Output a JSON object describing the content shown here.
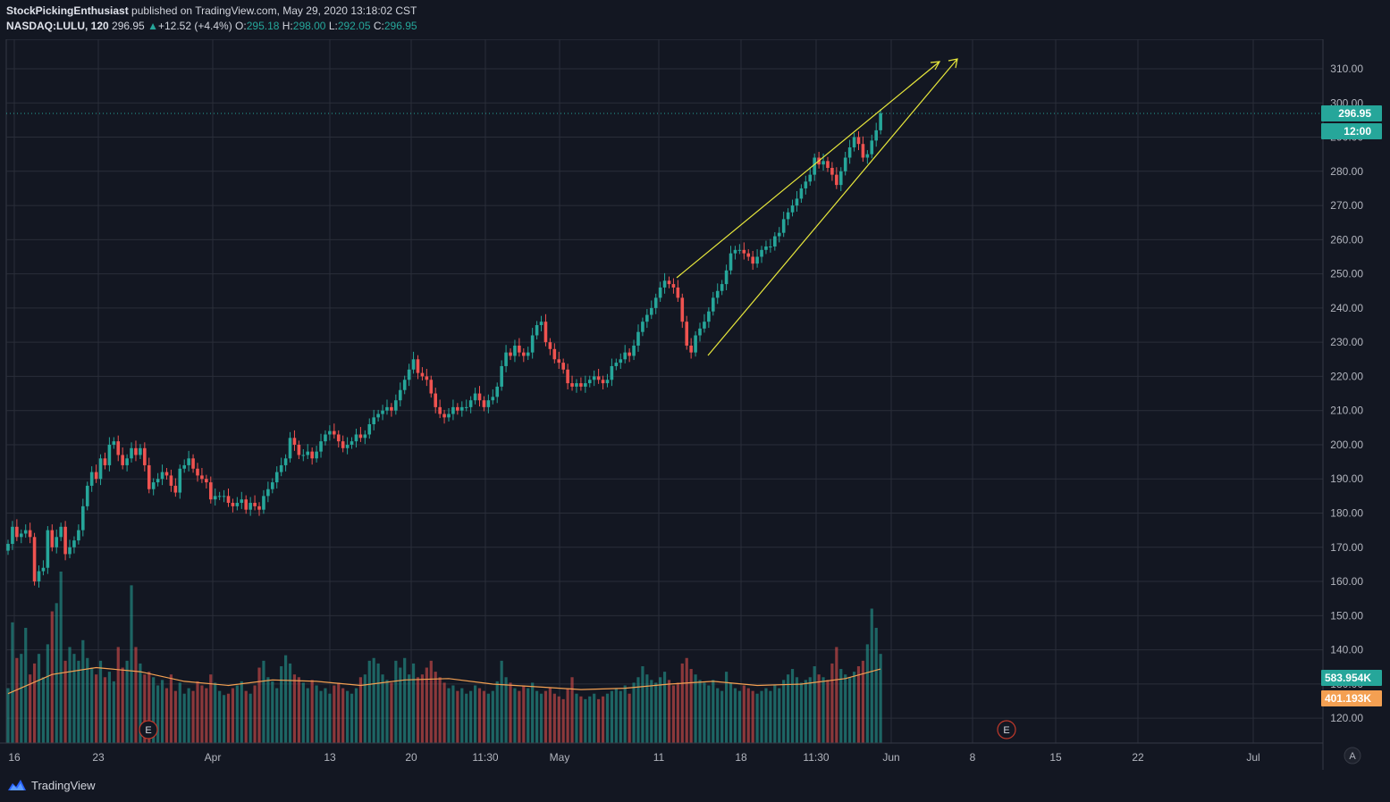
{
  "header": {
    "author": "StockPickingEnthusiast",
    "published_text": "published on TradingView.com, May 29, 2020 13:18:02 CST",
    "symbol": "NASDAQ:LULU, 120",
    "last": "296.95",
    "change_arrow": "▲",
    "change": "+12.52 (+4.4%)",
    "o_label": "O:",
    "o": "295.18",
    "h_label": "H:",
    "h": "298.00",
    "l_label": "L:",
    "l": "292.05",
    "c_label": "C:",
    "c": "296.95"
  },
  "footer": {
    "brand": "TradingView",
    "auto_label": "A"
  },
  "colors": {
    "background": "#131722",
    "grid": "#2a2e39",
    "up": "#26a69a",
    "down": "#ef5350",
    "drawing": "#e8e83c",
    "ma": "#f4a052",
    "earnings": "#c0392b"
  },
  "chart_data": {
    "type": "candlestick",
    "symbol": "NASDAQ:LULU",
    "interval": "120",
    "price_axis_ticks": [
      "120.00",
      "130.00",
      "140.00",
      "150.00",
      "160.00",
      "170.00",
      "180.00",
      "190.00",
      "200.00",
      "210.00",
      "220.00",
      "230.00",
      "240.00",
      "250.00",
      "260.00",
      "270.00",
      "280.00",
      "290.00",
      "300.00",
      "310.00"
    ],
    "time_axis_ticks": [
      "16",
      "23",
      "Apr",
      "13",
      "20",
      "11:30",
      "May",
      "11",
      "18",
      "11:30",
      "Jun",
      "8",
      "15",
      "22",
      "Jul"
    ],
    "last_price_label": "296.95",
    "countdown_label": "12:00",
    "volume_label": "583.954K",
    "volume_ma_label": "401.193K",
    "earnings_marker": "E",
    "path": [
      [
        0,
        171
      ],
      [
        1,
        176
      ],
      [
        2,
        173
      ],
      [
        3,
        174
      ],
      [
        4,
        175
      ],
      [
        5,
        173
      ],
      [
        6,
        160
      ],
      [
        7,
        163
      ],
      [
        8,
        164
      ],
      [
        9,
        175
      ],
      [
        10,
        170
      ],
      [
        11,
        173
      ],
      [
        12,
        176
      ],
      [
        13,
        168
      ],
      [
        14,
        170
      ],
      [
        15,
        172
      ],
      [
        16,
        175
      ],
      [
        17,
        182
      ],
      [
        18,
        188
      ],
      [
        19,
        192
      ],
      [
        20,
        190
      ],
      [
        21,
        196
      ],
      [
        22,
        194
      ],
      [
        23,
        200
      ],
      [
        24,
        201
      ],
      [
        25,
        197
      ],
      [
        26,
        194
      ],
      [
        27,
        196
      ],
      [
        28,
        199
      ],
      [
        29,
        197
      ],
      [
        30,
        199
      ],
      [
        31,
        194
      ],
      [
        32,
        187
      ],
      [
        33,
        189
      ],
      [
        34,
        190
      ],
      [
        35,
        192
      ],
      [
        36,
        191
      ],
      [
        37,
        188
      ],
      [
        38,
        186
      ],
      [
        39,
        193
      ],
      [
        40,
        194
      ],
      [
        41,
        196
      ],
      [
        42,
        193
      ],
      [
        43,
        191
      ],
      [
        44,
        190
      ],
      [
        45,
        189
      ],
      [
        46,
        184
      ],
      [
        47,
        185
      ],
      [
        48,
        185
      ],
      [
        49,
        185
      ],
      [
        50,
        183
      ],
      [
        51,
        182
      ],
      [
        52,
        183
      ],
      [
        53,
        184
      ],
      [
        54,
        181
      ],
      [
        55,
        183
      ],
      [
        56,
        182
      ],
      [
        57,
        181
      ],
      [
        58,
        185
      ],
      [
        59,
        187
      ],
      [
        60,
        189
      ],
      [
        61,
        192
      ],
      [
        62,
        194
      ],
      [
        63,
        196
      ],
      [
        64,
        202
      ],
      [
        65,
        200
      ],
      [
        66,
        197
      ],
      [
        67,
        197
      ],
      [
        68,
        198
      ],
      [
        69,
        196
      ],
      [
        70,
        198
      ],
      [
        71,
        201
      ],
      [
        72,
        203
      ],
      [
        73,
        204
      ],
      [
        74,
        203
      ],
      [
        75,
        201
      ],
      [
        76,
        199
      ],
      [
        77,
        200
      ],
      [
        78,
        201
      ],
      [
        79,
        203
      ],
      [
        80,
        202
      ],
      [
        81,
        203
      ],
      [
        82,
        206
      ],
      [
        83,
        208
      ],
      [
        84,
        209
      ],
      [
        85,
        210
      ],
      [
        86,
        211
      ],
      [
        87,
        210
      ],
      [
        88,
        213
      ],
      [
        89,
        216
      ],
      [
        90,
        219
      ],
      [
        91,
        222
      ],
      [
        92,
        225
      ],
      [
        93,
        221
      ],
      [
        94,
        220
      ],
      [
        95,
        219
      ],
      [
        96,
        215
      ],
      [
        97,
        211
      ],
      [
        98,
        209
      ],
      [
        99,
        208
      ],
      [
        100,
        209
      ],
      [
        101,
        211
      ],
      [
        102,
        210
      ],
      [
        103,
        211
      ],
      [
        104,
        211
      ],
      [
        105,
        213
      ],
      [
        106,
        215
      ],
      [
        107,
        213
      ],
      [
        108,
        211
      ],
      [
        109,
        213
      ],
      [
        110,
        214
      ],
      [
        111,
        217
      ],
      [
        112,
        223
      ],
      [
        113,
        227
      ],
      [
        114,
        226
      ],
      [
        115,
        229
      ],
      [
        116,
        227
      ],
      [
        117,
        226
      ],
      [
        118,
        227
      ],
      [
        119,
        232
      ],
      [
        120,
        235
      ],
      [
        121,
        236
      ],
      [
        122,
        230
      ],
      [
        123,
        228
      ],
      [
        124,
        225
      ],
      [
        125,
        224
      ],
      [
        126,
        222
      ],
      [
        127,
        218
      ],
      [
        128,
        217
      ],
      [
        129,
        218
      ],
      [
        130,
        217
      ],
      [
        131,
        218
      ],
      [
        132,
        219
      ],
      [
        133,
        220
      ],
      [
        134,
        219
      ],
      [
        135,
        218
      ],
      [
        136,
        219
      ],
      [
        137,
        223
      ],
      [
        138,
        224
      ],
      [
        139,
        225
      ],
      [
        140,
        227
      ],
      [
        141,
        226
      ],
      [
        142,
        229
      ],
      [
        143,
        233
      ],
      [
        144,
        236
      ],
      [
        145,
        238
      ],
      [
        146,
        240
      ],
      [
        147,
        243
      ],
      [
        148,
        246
      ],
      [
        149,
        248
      ],
      [
        150,
        247
      ],
      [
        151,
        246
      ],
      [
        152,
        243
      ],
      [
        153,
        236
      ],
      [
        154,
        229
      ],
      [
        155,
        227
      ],
      [
        156,
        232
      ],
      [
        157,
        234
      ],
      [
        158,
        236
      ],
      [
        159,
        239
      ],
      [
        160,
        243
      ],
      [
        161,
        245
      ],
      [
        162,
        247
      ],
      [
        163,
        251
      ],
      [
        164,
        256
      ],
      [
        165,
        257
      ],
      [
        166,
        257
      ],
      [
        167,
        256
      ],
      [
        168,
        255
      ],
      [
        169,
        253
      ],
      [
        170,
        255
      ],
      [
        171,
        257
      ],
      [
        172,
        258
      ],
      [
        173,
        258
      ],
      [
        174,
        261
      ],
      [
        175,
        262
      ],
      [
        176,
        266
      ],
      [
        177,
        268
      ],
      [
        178,
        270
      ],
      [
        179,
        272
      ],
      [
        180,
        275
      ],
      [
        181,
        277
      ],
      [
        182,
        279
      ],
      [
        183,
        284
      ],
      [
        184,
        282
      ],
      [
        185,
        283
      ],
      [
        186,
        281
      ],
      [
        187,
        279
      ],
      [
        188,
        276
      ],
      [
        189,
        280
      ],
      [
        190,
        284
      ],
      [
        191,
        287
      ],
      [
        192,
        290
      ],
      [
        193,
        288
      ],
      [
        194,
        284
      ],
      [
        195,
        285
      ],
      [
        196,
        289
      ],
      [
        197,
        292
      ],
      [
        198,
        297
      ]
    ],
    "volume": [
      [
        0,
        40
      ],
      [
        1,
        88
      ],
      [
        2,
        62
      ],
      [
        3,
        65
      ],
      [
        4,
        84
      ],
      [
        5,
        50
      ],
      [
        6,
        58
      ],
      [
        7,
        65
      ],
      [
        8,
        48
      ],
      [
        9,
        72
      ],
      [
        10,
        96
      ],
      [
        11,
        102
      ],
      [
        12,
        125
      ],
      [
        13,
        60
      ],
      [
        14,
        70
      ],
      [
        15,
        65
      ],
      [
        16,
        60
      ],
      [
        17,
        75
      ],
      [
        18,
        62
      ],
      [
        19,
        55
      ],
      [
        20,
        50
      ],
      [
        21,
        60
      ],
      [
        22,
        48
      ],
      [
        23,
        52
      ],
      [
        24,
        45
      ],
      [
        25,
        70
      ],
      [
        26,
        55
      ],
      [
        27,
        60
      ],
      [
        28,
        115
      ],
      [
        29,
        70
      ],
      [
        30,
        58
      ],
      [
        31,
        50
      ],
      [
        32,
        52
      ],
      [
        33,
        48
      ],
      [
        34,
        42
      ],
      [
        35,
        46
      ],
      [
        36,
        40
      ],
      [
        37,
        50
      ],
      [
        38,
        38
      ],
      [
        39,
        44
      ],
      [
        40,
        36
      ],
      [
        41,
        40
      ],
      [
        42,
        38
      ],
      [
        43,
        45
      ],
      [
        44,
        42
      ],
      [
        45,
        40
      ],
      [
        46,
        50
      ],
      [
        47,
        44
      ],
      [
        48,
        38
      ],
      [
        49,
        35
      ],
      [
        50,
        36
      ],
      [
        51,
        40
      ],
      [
        52,
        42
      ],
      [
        53,
        45
      ],
      [
        54,
        38
      ],
      [
        55,
        36
      ],
      [
        56,
        42
      ],
      [
        57,
        55
      ],
      [
        58,
        60
      ],
      [
        59,
        48
      ],
      [
        60,
        45
      ],
      [
        61,
        40
      ],
      [
        62,
        56
      ],
      [
        63,
        64
      ],
      [
        64,
        58
      ],
      [
        65,
        50
      ],
      [
        66,
        48
      ],
      [
        67,
        44
      ],
      [
        68,
        40
      ],
      [
        69,
        46
      ],
      [
        70,
        42
      ],
      [
        71,
        38
      ],
      [
        72,
        40
      ],
      [
        73,
        36
      ],
      [
        74,
        42
      ],
      [
        75,
        44
      ],
      [
        76,
        40
      ],
      [
        77,
        38
      ],
      [
        78,
        36
      ],
      [
        79,
        40
      ],
      [
        80,
        48
      ],
      [
        81,
        50
      ],
      [
        82,
        60
      ],
      [
        83,
        62
      ],
      [
        84,
        58
      ],
      [
        85,
        50
      ],
      [
        86,
        46
      ],
      [
        87,
        44
      ],
      [
        88,
        60
      ],
      [
        89,
        55
      ],
      [
        90,
        62
      ],
      [
        91,
        50
      ],
      [
        92,
        58
      ],
      [
        93,
        48
      ],
      [
        94,
        50
      ],
      [
        95,
        55
      ],
      [
        96,
        60
      ],
      [
        97,
        52
      ],
      [
        98,
        48
      ],
      [
        99,
        44
      ],
      [
        100,
        40
      ],
      [
        101,
        42
      ],
      [
        102,
        38
      ],
      [
        103,
        40
      ],
      [
        104,
        36
      ],
      [
        105,
        38
      ],
      [
        106,
        42
      ],
      [
        107,
        40
      ],
      [
        108,
        38
      ],
      [
        109,
        36
      ],
      [
        110,
        38
      ],
      [
        111,
        45
      ],
      [
        112,
        60
      ],
      [
        113,
        48
      ],
      [
        114,
        44
      ],
      [
        115,
        40
      ],
      [
        116,
        38
      ],
      [
        117,
        42
      ],
      [
        118,
        40
      ],
      [
        119,
        44
      ],
      [
        120,
        38
      ],
      [
        121,
        36
      ],
      [
        122,
        38
      ],
      [
        123,
        40
      ],
      [
        124,
        36
      ],
      [
        125,
        34
      ],
      [
        126,
        32
      ],
      [
        127,
        40
      ],
      [
        128,
        48
      ],
      [
        129,
        36
      ],
      [
        130,
        34
      ],
      [
        131,
        32
      ],
      [
        132,
        34
      ],
      [
        133,
        36
      ],
      [
        134,
        32
      ],
      [
        135,
        34
      ],
      [
        136,
        36
      ],
      [
        137,
        38
      ],
      [
        138,
        40
      ],
      [
        139,
        38
      ],
      [
        140,
        42
      ],
      [
        141,
        36
      ],
      [
        142,
        44
      ],
      [
        143,
        48
      ],
      [
        144,
        56
      ],
      [
        145,
        50
      ],
      [
        146,
        46
      ],
      [
        147,
        44
      ],
      [
        148,
        48
      ],
      [
        149,
        52
      ],
      [
        150,
        46
      ],
      [
        151,
        42
      ],
      [
        152,
        44
      ],
      [
        153,
        58
      ],
      [
        154,
        62
      ],
      [
        155,
        54
      ],
      [
        156,
        50
      ],
      [
        157,
        46
      ],
      [
        158,
        44
      ],
      [
        159,
        42
      ],
      [
        160,
        46
      ],
      [
        161,
        40
      ],
      [
        162,
        38
      ],
      [
        163,
        52
      ],
      [
        164,
        44
      ],
      [
        165,
        40
      ],
      [
        166,
        38
      ],
      [
        167,
        42
      ],
      [
        168,
        40
      ],
      [
        169,
        38
      ],
      [
        170,
        36
      ],
      [
        171,
        38
      ],
      [
        172,
        40
      ],
      [
        173,
        38
      ],
      [
        174,
        42
      ],
      [
        175,
        40
      ],
      [
        176,
        46
      ],
      [
        177,
        50
      ],
      [
        178,
        54
      ],
      [
        179,
        48
      ],
      [
        180,
        44
      ],
      [
        181,
        46
      ],
      [
        182,
        48
      ],
      [
        183,
        56
      ],
      [
        184,
        50
      ],
      [
        185,
        48
      ],
      [
        186,
        46
      ],
      [
        187,
        58
      ],
      [
        188,
        70
      ],
      [
        189,
        54
      ],
      [
        190,
        50
      ],
      [
        191,
        48
      ],
      [
        192,
        52
      ],
      [
        193,
        56
      ],
      [
        194,
        60
      ],
      [
        195,
        72
      ],
      [
        196,
        98
      ],
      [
        197,
        84
      ],
      [
        198,
        65
      ]
    ],
    "volume_ma": [
      [
        0,
        36
      ],
      [
        10,
        50
      ],
      [
        20,
        55
      ],
      [
        30,
        52
      ],
      [
        40,
        45
      ],
      [
        50,
        42
      ],
      [
        60,
        46
      ],
      [
        70,
        45
      ],
      [
        80,
        42
      ],
      [
        90,
        46
      ],
      [
        100,
        47
      ],
      [
        110,
        43
      ],
      [
        120,
        41
      ],
      [
        130,
        39
      ],
      [
        140,
        40
      ],
      [
        150,
        43
      ],
      [
        160,
        45
      ],
      [
        170,
        42
      ],
      [
        180,
        43
      ],
      [
        190,
        47
      ],
      [
        198,
        54
      ]
    ]
  }
}
